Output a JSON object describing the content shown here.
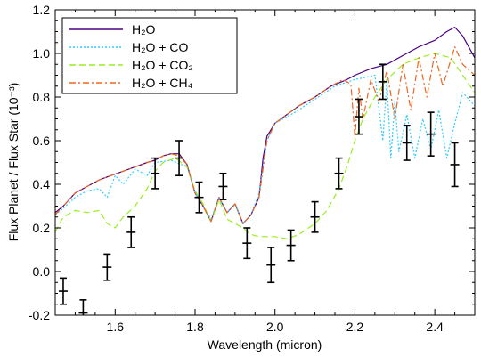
{
  "chart_data": {
    "type": "line",
    "xlabel": "Wavelength (micron)",
    "ylabel": "Flux Planet / Flux Star (10⁻³)",
    "xlim": [
      1.45,
      2.5
    ],
    "ylim": [
      -0.2,
      1.2
    ],
    "xticks": [
      1.6,
      1.8,
      2.0,
      2.2,
      2.4
    ],
    "xtick_labels": [
      "1.6",
      "1.8",
      "2.0",
      "2.2",
      "2.4"
    ],
    "yticks": [
      -0.2,
      0.0,
      0.2,
      0.4,
      0.6,
      0.8,
      1.0,
      1.2
    ],
    "ytick_labels": [
      "-0.2",
      "0.0",
      "0.2",
      "0.4",
      "0.6",
      "0.8",
      "1.0",
      "1.2"
    ],
    "grid": false,
    "legend_position": "top-left",
    "series": [
      {
        "name": "H₂O",
        "color": "#4b0082",
        "dash": "solid",
        "x": [
          1.45,
          1.47,
          1.5,
          1.53,
          1.56,
          1.59,
          1.62,
          1.65,
          1.68,
          1.7,
          1.72,
          1.74,
          1.76,
          1.78,
          1.8,
          1.82,
          1.84,
          1.86,
          1.88,
          1.9,
          1.92,
          1.94,
          1.96,
          1.97,
          1.98,
          2.0,
          2.03,
          2.06,
          2.1,
          2.14,
          2.18,
          2.2,
          2.24,
          2.28,
          2.32,
          2.36,
          2.4,
          2.43,
          2.45,
          2.47,
          2.5
        ],
        "values": [
          0.27,
          0.3,
          0.36,
          0.39,
          0.42,
          0.44,
          0.46,
          0.48,
          0.5,
          0.51,
          0.53,
          0.54,
          0.54,
          0.49,
          0.36,
          0.3,
          0.23,
          0.34,
          0.27,
          0.31,
          0.22,
          0.26,
          0.34,
          0.52,
          0.62,
          0.68,
          0.72,
          0.76,
          0.8,
          0.85,
          0.88,
          0.9,
          0.93,
          0.95,
          0.99,
          1.03,
          1.06,
          1.1,
          1.12,
          1.08,
          0.98
        ]
      },
      {
        "name": "H₂O + CO",
        "color": "#33ccff",
        "dash": "2,2",
        "x": [
          1.45,
          1.47,
          1.5,
          1.53,
          1.56,
          1.58,
          1.6,
          1.62,
          1.65,
          1.68,
          1.7,
          1.74,
          1.78,
          1.8,
          1.82,
          1.84,
          1.86,
          1.88,
          1.9,
          1.92,
          1.94,
          1.96,
          1.98,
          2.0,
          2.05,
          2.1,
          2.15,
          2.2,
          2.25,
          2.27,
          2.28,
          2.29,
          2.3,
          2.31,
          2.33,
          2.35,
          2.37,
          2.39,
          2.41,
          2.43,
          2.45,
          2.47,
          2.5
        ],
        "values": [
          0.26,
          0.29,
          0.34,
          0.37,
          0.38,
          0.34,
          0.44,
          0.4,
          0.47,
          0.44,
          0.5,
          0.51,
          0.48,
          0.36,
          0.3,
          0.24,
          0.34,
          0.27,
          0.31,
          0.22,
          0.26,
          0.36,
          0.6,
          0.68,
          0.73,
          0.79,
          0.85,
          0.88,
          0.9,
          0.6,
          0.88,
          0.52,
          0.78,
          0.55,
          0.72,
          0.52,
          0.7,
          0.56,
          0.74,
          0.52,
          0.68,
          0.82,
          0.76
        ]
      },
      {
        "name": "H₂O + CO₂",
        "color": "#99ee22",
        "dash": "7,4",
        "x": [
          1.45,
          1.47,
          1.5,
          1.53,
          1.56,
          1.58,
          1.6,
          1.62,
          1.65,
          1.68,
          1.7,
          1.72,
          1.75,
          1.78,
          1.8,
          1.82,
          1.84,
          1.86,
          1.88,
          1.9,
          1.92,
          1.94,
          1.96,
          2.0,
          2.03,
          2.06,
          2.1,
          2.13,
          2.16,
          2.18,
          2.2,
          2.22,
          2.25,
          2.28,
          2.32,
          2.36,
          2.4,
          2.44,
          2.47,
          2.5
        ],
        "values": [
          0.18,
          0.25,
          0.28,
          0.27,
          0.28,
          0.22,
          0.2,
          0.25,
          0.3,
          0.38,
          0.46,
          0.5,
          0.52,
          0.48,
          0.37,
          0.31,
          0.23,
          0.33,
          0.24,
          0.22,
          0.2,
          0.17,
          0.16,
          0.16,
          0.15,
          0.17,
          0.22,
          0.28,
          0.38,
          0.48,
          0.6,
          0.7,
          0.8,
          0.88,
          0.95,
          0.98,
          1.0,
          0.98,
          0.9,
          0.82
        ]
      },
      {
        "name": "H₂O + CH₄",
        "color": "#ee6622",
        "dash": "7,3,2,3",
        "x": [
          1.45,
          1.47,
          1.5,
          1.53,
          1.56,
          1.59,
          1.62,
          1.65,
          1.68,
          1.7,
          1.72,
          1.74,
          1.76,
          1.78,
          1.8,
          1.82,
          1.84,
          1.86,
          1.88,
          1.9,
          1.92,
          1.94,
          1.96,
          1.98,
          2.0,
          2.03,
          2.06,
          2.1,
          2.14,
          2.17,
          2.19,
          2.2,
          2.21,
          2.22,
          2.24,
          2.26,
          2.28,
          2.3,
          2.32,
          2.34,
          2.36,
          2.38,
          2.4,
          2.42,
          2.45,
          2.47,
          2.5
        ],
        "values": [
          0.26,
          0.3,
          0.36,
          0.39,
          0.42,
          0.44,
          0.46,
          0.48,
          0.5,
          0.51,
          0.53,
          0.54,
          0.53,
          0.49,
          0.36,
          0.3,
          0.23,
          0.34,
          0.27,
          0.31,
          0.22,
          0.26,
          0.34,
          0.6,
          0.68,
          0.72,
          0.76,
          0.8,
          0.85,
          0.88,
          0.86,
          0.62,
          0.84,
          0.7,
          0.88,
          0.78,
          0.92,
          0.7,
          0.95,
          0.74,
          0.98,
          0.8,
          1.0,
          0.85,
          1.03,
          0.95,
          0.9
        ]
      }
    ],
    "data_points": {
      "name": "observed",
      "color": "#000000",
      "x": [
        1.47,
        1.52,
        1.58,
        1.64,
        1.7,
        1.76,
        1.81,
        1.87,
        1.93,
        1.99,
        2.04,
        2.1,
        2.16,
        2.21,
        2.27,
        2.33,
        2.39,
        2.45
      ],
      "y": [
        -0.09,
        -0.19,
        0.02,
        0.18,
        0.45,
        0.52,
        0.34,
        0.39,
        0.13,
        0.03,
        0.12,
        0.25,
        0.45,
        0.71,
        0.87,
        0.59,
        0.63,
        0.49
      ],
      "yerr": [
        0.06,
        0.06,
        0.06,
        0.07,
        0.07,
        0.08,
        0.07,
        0.06,
        0.07,
        0.08,
        0.07,
        0.07,
        0.07,
        0.08,
        0.08,
        0.08,
        0.1,
        0.1
      ]
    }
  }
}
